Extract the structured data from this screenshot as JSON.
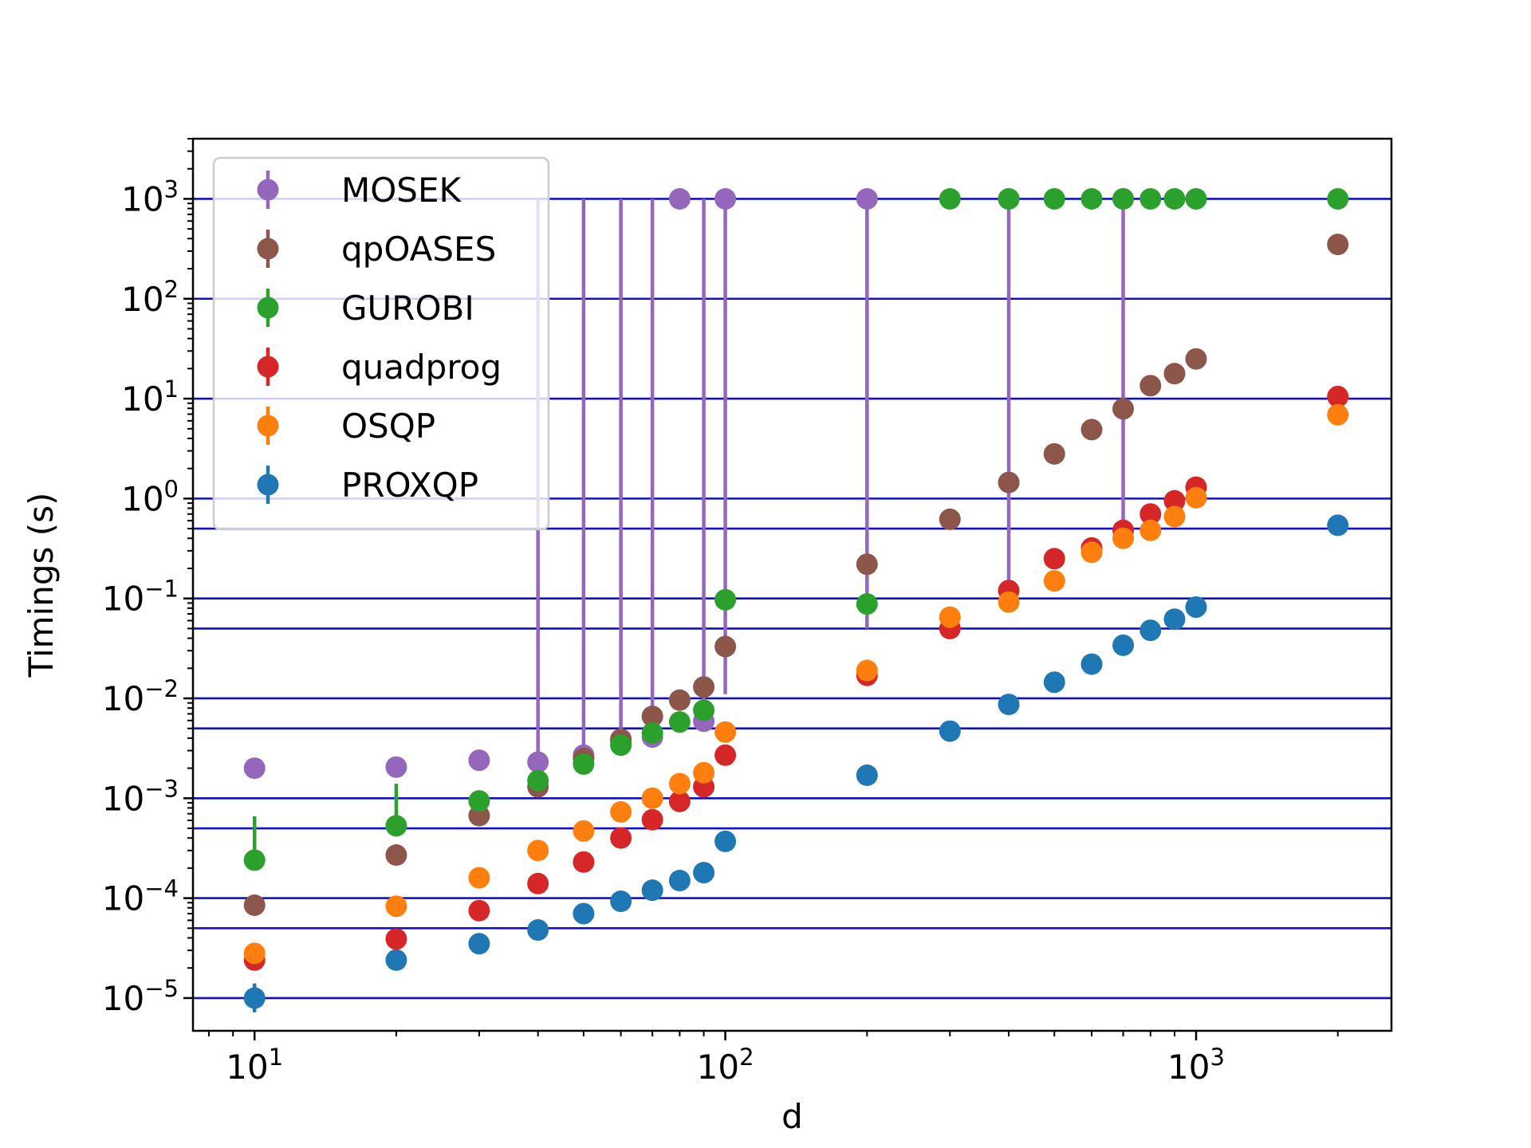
{
  "chart_data": {
    "type": "scatter",
    "xlabel": "d",
    "ylabel": "Timings (s)",
    "xscale": "log",
    "yscale": "log",
    "xlim": [
      7.4,
      2600
    ],
    "ylim": [
      4.7e-06,
      4000
    ],
    "x_ticks": [
      {
        "base": "10",
        "exp": "1",
        "value": 10
      },
      {
        "base": "10",
        "exp": "2",
        "value": 100
      },
      {
        "base": "10",
        "exp": "3",
        "value": 1000
      }
    ],
    "y_ticks": [
      {
        "base": "10",
        "exp": "3",
        "value": 1000
      },
      {
        "base": "10",
        "exp": "2",
        "value": 100
      },
      {
        "base": "10",
        "exp": "1",
        "value": 10
      },
      {
        "base": "10",
        "exp": "0",
        "value": 1
      },
      {
        "base": "10",
        "exp": "−1",
        "value": 0.1
      },
      {
        "base": "10",
        "exp": "−2",
        "value": 0.01
      },
      {
        "base": "10",
        "exp": "−3",
        "value": 0.001
      },
      {
        "base": "10",
        "exp": "−4",
        "value": 0.0001
      },
      {
        "base": "10",
        "exp": "−5",
        "value": 1e-05
      }
    ],
    "hlines": [
      1000,
      100,
      10,
      1,
      0.5,
      0.1,
      0.05,
      0.01,
      0.005,
      0.001,
      0.0005,
      0.0001,
      5e-05,
      1e-05
    ],
    "hline_color": "#1010cc",
    "grid": false,
    "legend_position": "top-left",
    "series": [
      {
        "name": "MOSEK",
        "color": "#9467bd",
        "points": [
          {
            "x": 10,
            "y": 0.002
          },
          {
            "x": 20,
            "y": 0.00205
          },
          {
            "x": 30,
            "y": 0.0024
          },
          {
            "x": 40,
            "y": 0.0023,
            "err": [
              0.0023,
              1000
            ]
          },
          {
            "x": 50,
            "y": 0.0027,
            "err": [
              0.0027,
              1000
            ]
          },
          {
            "x": 60,
            "y": 0.0037,
            "err": [
              0.0037,
              1000
            ]
          },
          {
            "x": 70,
            "y": 0.0041,
            "err": [
              0.0041,
              1000
            ]
          },
          {
            "x": 80,
            "y": 1000
          },
          {
            "x": 90,
            "y": 0.0059,
            "err": [
              0.0059,
              1000
            ]
          },
          {
            "x": 100,
            "y": 1000,
            "err": [
              0.011,
              1000
            ]
          },
          {
            "x": 200,
            "y": 1000,
            "err": [
              0.05,
              1000
            ]
          },
          {
            "x": 400,
            "y": 1000,
            "err": [
              0.1,
              1000
            ]
          },
          {
            "x": 700,
            "y": 1000,
            "err": [
              0.45,
              1000
            ]
          }
        ]
      },
      {
        "name": "qpOASES",
        "color": "#8c564b",
        "points": [
          {
            "x": 10,
            "y": 8.5e-05
          },
          {
            "x": 20,
            "y": 0.00027
          },
          {
            "x": 30,
            "y": 0.00067
          },
          {
            "x": 40,
            "y": 0.0013
          },
          {
            "x": 50,
            "y": 0.0025
          },
          {
            "x": 60,
            "y": 0.0039
          },
          {
            "x": 70,
            "y": 0.0066
          },
          {
            "x": 80,
            "y": 0.0096
          },
          {
            "x": 90,
            "y": 0.013
          },
          {
            "x": 100,
            "y": 0.033
          },
          {
            "x": 200,
            "y": 0.22
          },
          {
            "x": 300,
            "y": 0.62
          },
          {
            "x": 400,
            "y": 1.45
          },
          {
            "x": 500,
            "y": 2.8
          },
          {
            "x": 600,
            "y": 4.9
          },
          {
            "x": 700,
            "y": 7.9
          },
          {
            "x": 800,
            "y": 13.5
          },
          {
            "x": 900,
            "y": 17.8
          },
          {
            "x": 1000,
            "y": 25
          },
          {
            "x": 2000,
            "y": 350
          }
        ]
      },
      {
        "name": "GUROBI",
        "color": "#2ca02c",
        "points": [
          {
            "x": 10,
            "y": 0.00024,
            "err": [
              0.00024,
              0.00066
            ]
          },
          {
            "x": 20,
            "y": 0.00053,
            "err": [
              0.00053,
              0.0014
            ]
          },
          {
            "x": 30,
            "y": 0.00094
          },
          {
            "x": 40,
            "y": 0.0015
          },
          {
            "x": 50,
            "y": 0.0022
          },
          {
            "x": 60,
            "y": 0.0034
          },
          {
            "x": 70,
            "y": 0.0045
          },
          {
            "x": 80,
            "y": 0.0058
          },
          {
            "x": 90,
            "y": 0.0076
          },
          {
            "x": 100,
            "y": 0.097
          },
          {
            "x": 200,
            "y": 0.088
          },
          {
            "x": 300,
            "y": 1000
          },
          {
            "x": 400,
            "y": 1000
          },
          {
            "x": 500,
            "y": 1000
          },
          {
            "x": 600,
            "y": 1000
          },
          {
            "x": 700,
            "y": 1000
          },
          {
            "x": 800,
            "y": 1000
          },
          {
            "x": 900,
            "y": 1000
          },
          {
            "x": 1000,
            "y": 1000
          },
          {
            "x": 2000,
            "y": 1000
          }
        ]
      },
      {
        "name": "quadprog",
        "color": "#d62728",
        "points": [
          {
            "x": 10,
            "y": 2.4e-05
          },
          {
            "x": 20,
            "y": 3.9e-05
          },
          {
            "x": 30,
            "y": 7.5e-05
          },
          {
            "x": 40,
            "y": 0.00014
          },
          {
            "x": 50,
            "y": 0.00023
          },
          {
            "x": 60,
            "y": 0.0004
          },
          {
            "x": 70,
            "y": 0.00061
          },
          {
            "x": 80,
            "y": 0.00093
          },
          {
            "x": 90,
            "y": 0.0013
          },
          {
            "x": 100,
            "y": 0.0027
          },
          {
            "x": 200,
            "y": 0.017
          },
          {
            "x": 300,
            "y": 0.05
          },
          {
            "x": 400,
            "y": 0.12
          },
          {
            "x": 500,
            "y": 0.25
          },
          {
            "x": 600,
            "y": 0.32
          },
          {
            "x": 700,
            "y": 0.48
          },
          {
            "x": 800,
            "y": 0.7
          },
          {
            "x": 900,
            "y": 0.95
          },
          {
            "x": 1000,
            "y": 1.3
          },
          {
            "x": 2000,
            "y": 10.5
          }
        ]
      },
      {
        "name": "OSQP",
        "color": "#ff7f0e",
        "points": [
          {
            "x": 10,
            "y": 2.8e-05
          },
          {
            "x": 20,
            "y": 8.3e-05
          },
          {
            "x": 30,
            "y": 0.00016
          },
          {
            "x": 40,
            "y": 0.0003
          },
          {
            "x": 50,
            "y": 0.00047
          },
          {
            "x": 60,
            "y": 0.00073
          },
          {
            "x": 70,
            "y": 0.001
          },
          {
            "x": 80,
            "y": 0.0014
          },
          {
            "x": 90,
            "y": 0.0018
          },
          {
            "x": 100,
            "y": 0.0046
          },
          {
            "x": 200,
            "y": 0.019
          },
          {
            "x": 300,
            "y": 0.065
          },
          {
            "x": 400,
            "y": 0.092
          },
          {
            "x": 500,
            "y": 0.15
          },
          {
            "x": 600,
            "y": 0.29
          },
          {
            "x": 700,
            "y": 0.4
          },
          {
            "x": 800,
            "y": 0.48
          },
          {
            "x": 900,
            "y": 0.66
          },
          {
            "x": 1000,
            "y": 1.02
          },
          {
            "x": 2000,
            "y": 6.9
          }
        ]
      },
      {
        "name": "PROXQP",
        "color": "#1f77b4",
        "points": [
          {
            "x": 10,
            "y": 1e-05,
            "err": [
              7.2e-06,
              1.4e-05
            ]
          },
          {
            "x": 20,
            "y": 2.4e-05
          },
          {
            "x": 30,
            "y": 3.5e-05
          },
          {
            "x": 40,
            "y": 4.8e-05
          },
          {
            "x": 50,
            "y": 7e-05
          },
          {
            "x": 60,
            "y": 9.3e-05
          },
          {
            "x": 70,
            "y": 0.00012
          },
          {
            "x": 80,
            "y": 0.00015
          },
          {
            "x": 90,
            "y": 0.00018
          },
          {
            "x": 100,
            "y": 0.00037
          },
          {
            "x": 200,
            "y": 0.0017
          },
          {
            "x": 300,
            "y": 0.0047
          },
          {
            "x": 400,
            "y": 0.0087
          },
          {
            "x": 500,
            "y": 0.0145
          },
          {
            "x": 600,
            "y": 0.022
          },
          {
            "x": 700,
            "y": 0.034
          },
          {
            "x": 800,
            "y": 0.048
          },
          {
            "x": 900,
            "y": 0.062
          },
          {
            "x": 1000,
            "y": 0.082
          },
          {
            "x": 2000,
            "y": 0.54
          }
        ]
      }
    ]
  }
}
